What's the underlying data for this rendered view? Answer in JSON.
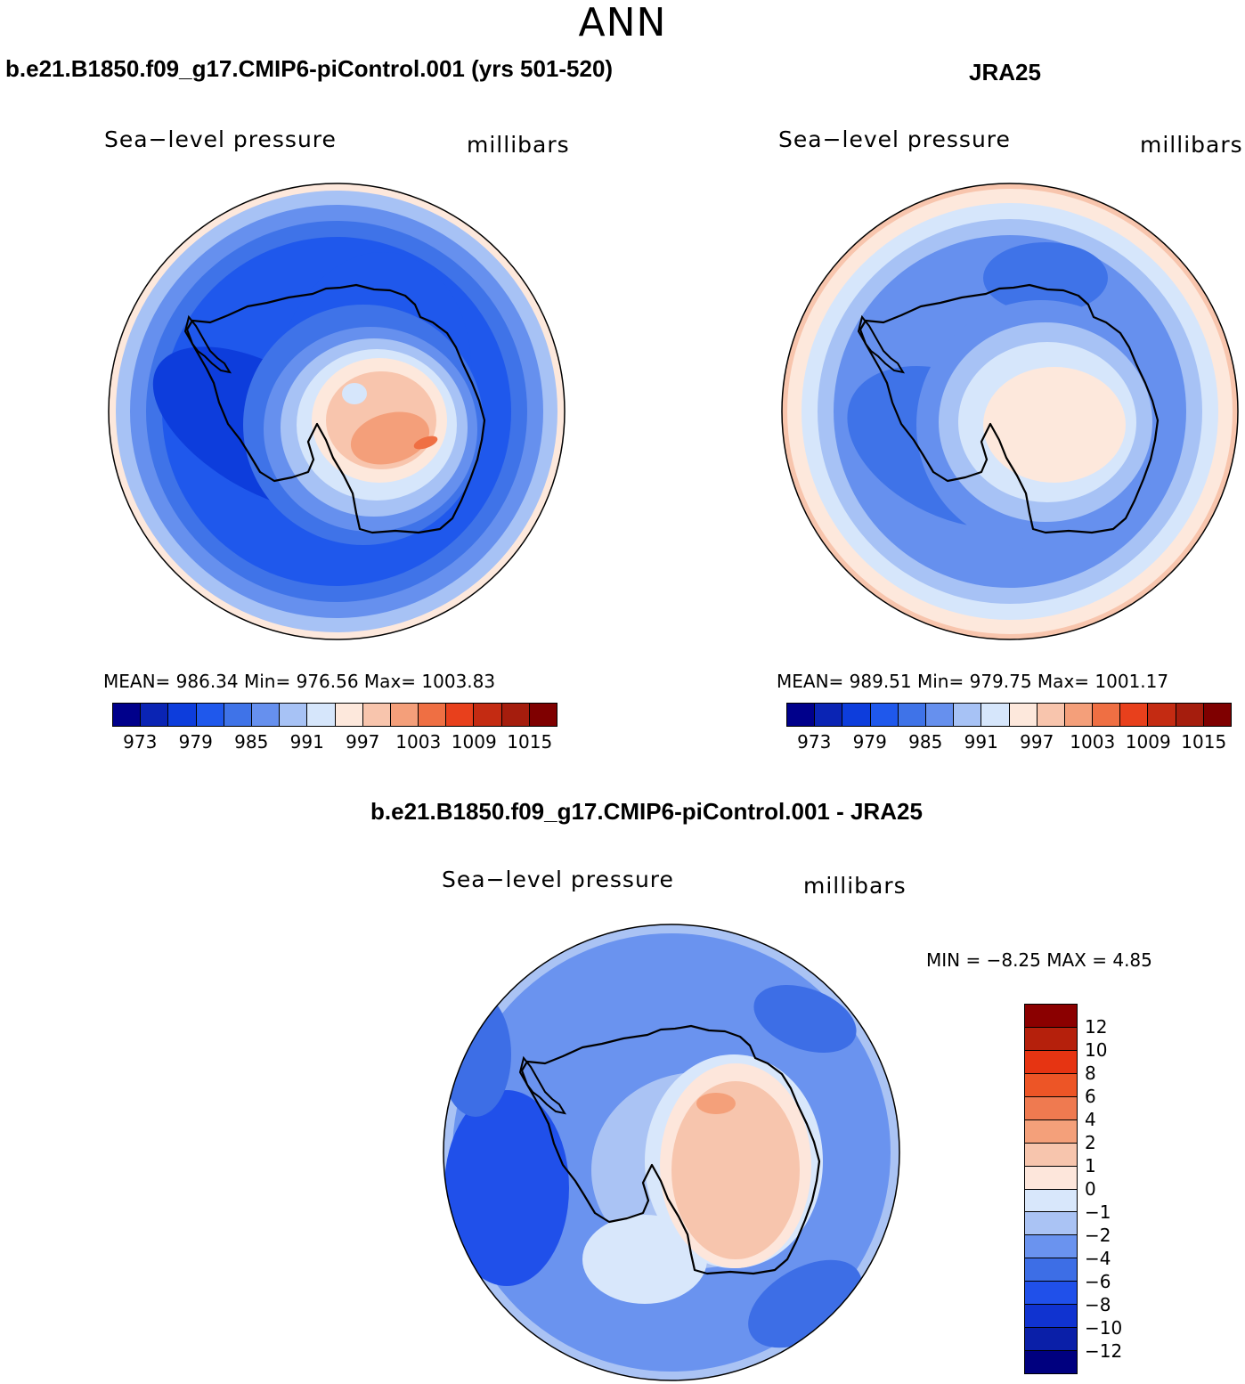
{
  "title": "ANN",
  "colors": {
    "abs_palette": [
      "#00008b",
      "#0a24b4",
      "#0d3ddc",
      "#1f58ec",
      "#3f73e8",
      "#6690ee",
      "#a7c2f5",
      "#d6e6fb",
      "#fde8dc",
      "#f8c5ad",
      "#f49f7a",
      "#ef6f43",
      "#e8401c",
      "#c42b12",
      "#a51d0d",
      "#7f0000"
    ],
    "diff_palette": [
      "#00007f",
      "#0a1fa8",
      "#1033d0",
      "#2050ea",
      "#3d6ee6",
      "#6a93ef",
      "#aac3f4",
      "#d8e7fb",
      "#fde6db",
      "#f7c5ad",
      "#f4a07a",
      "#ef7a50",
      "#ed5526",
      "#e63412",
      "#b5200c",
      "#8b0000"
    ]
  },
  "panels": [
    {
      "id": "model",
      "title": "b.e21.B1850.f09_g17.CMIP6-piControl.001 (yrs 501-520)",
      "variable": "Sea−level pressure",
      "units": "millibars",
      "stats": "MEAN=  986.34   Min=  976.56   Max=  1003.83",
      "colorbar_ticks": [
        "973",
        "979",
        "985",
        "991",
        "997",
        "1003",
        "1009",
        "1015"
      ]
    },
    {
      "id": "obs",
      "title": "JRA25",
      "variable": "Sea−level pressure",
      "units": "millibars",
      "stats": "MEAN=  989.51   Min=  979.75   Max=  1001.17",
      "colorbar_ticks": [
        "973",
        "979",
        "985",
        "991",
        "997",
        "1003",
        "1009",
        "1015"
      ]
    }
  ],
  "difference": {
    "title": "b.e21.B1850.f09_g17.CMIP6-piControl.001 - JRA25",
    "variable": "Sea−level pressure",
    "units": "millibars",
    "stats": "MIN =    −8.25  MAX =     4.85",
    "colorbar_ticks": [
      "12",
      "10",
      "8",
      "6",
      "4",
      "2",
      "1",
      "0",
      "−1",
      "−2",
      "−4",
      "−6",
      "−8",
      "−10",
      "−12"
    ]
  },
  "chart_data": [
    {
      "type": "heatmap",
      "title": "b.e21.B1850.f09_g17.CMIP6-piControl.001 (yrs 501-520)",
      "variable": "Sea-level pressure",
      "units": "millibars",
      "projection": "south-polar stereographic",
      "mean": 986.34,
      "min": 976.56,
      "max": 1003.83,
      "contour_levels": [
        973,
        976,
        979,
        982,
        985,
        988,
        991,
        994,
        997,
        1000,
        1003,
        1006,
        1009,
        1012,
        1015
      ],
      "colorbar_ticks": [
        973,
        979,
        985,
        991,
        997,
        1003,
        1009,
        1015
      ]
    },
    {
      "type": "heatmap",
      "title": "JRA25",
      "variable": "Sea-level pressure",
      "units": "millibars",
      "projection": "south-polar stereographic",
      "mean": 989.51,
      "min": 979.75,
      "max": 1001.17,
      "contour_levels": [
        973,
        976,
        979,
        982,
        985,
        988,
        991,
        994,
        997,
        1000,
        1003,
        1006,
        1009,
        1012,
        1015
      ],
      "colorbar_ticks": [
        973,
        979,
        985,
        991,
        997,
        1003,
        1009,
        1015
      ]
    },
    {
      "type": "heatmap",
      "title": "b.e21.B1850.f09_g17.CMIP6-piControl.001 - JRA25",
      "variable": "Sea-level pressure",
      "units": "millibars",
      "projection": "south-polar stereographic",
      "min": -8.25,
      "max": 4.85,
      "contour_levels": [
        -12,
        -10,
        -8,
        -6,
        -4,
        -2,
        -1,
        0,
        1,
        2,
        4,
        6,
        8,
        10,
        12
      ],
      "colorbar_ticks": [
        12,
        10,
        8,
        6,
        4,
        2,
        1,
        0,
        -1,
        -2,
        -4,
        -6,
        -8,
        -10,
        -12
      ]
    }
  ]
}
